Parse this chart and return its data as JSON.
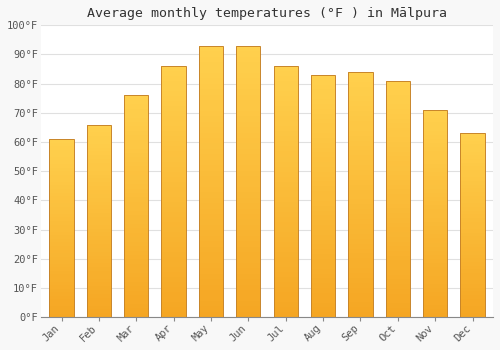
{
  "title": "Average monthly temperatures (°F ) in Mālpura",
  "months": [
    "Jan",
    "Feb",
    "Mar",
    "Apr",
    "May",
    "Jun",
    "Jul",
    "Aug",
    "Sep",
    "Oct",
    "Nov",
    "Dec"
  ],
  "values": [
    61,
    66,
    76,
    86,
    93,
    93,
    86,
    83,
    84,
    81,
    71,
    63
  ],
  "bar_color_bottom": "#F5A623",
  "bar_color_top": "#FFD04D",
  "bar_edge_color": "#C8852A",
  "background_color": "#f8f8f8",
  "plot_bg_color": "#ffffff",
  "grid_color": "#e0e0e0",
  "ylim": [
    0,
    100
  ],
  "yticks": [
    0,
    10,
    20,
    30,
    40,
    50,
    60,
    70,
    80,
    90,
    100
  ],
  "ytick_labels": [
    "0°F",
    "10°F",
    "20°F",
    "30°F",
    "40°F",
    "50°F",
    "60°F",
    "70°F",
    "80°F",
    "90°F",
    "100°F"
  ],
  "title_fontsize": 9.5,
  "tick_fontsize": 7.5,
  "bar_width": 0.65
}
